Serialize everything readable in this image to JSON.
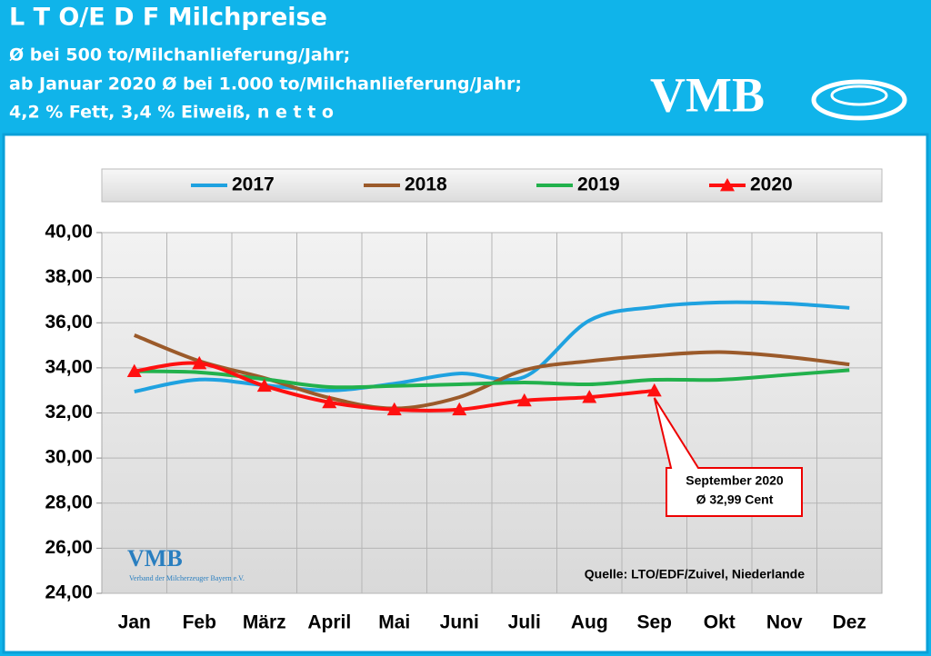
{
  "header": {
    "title": "L T O/E D F Milchpreise",
    "lines": [
      "Ø bei 500 to/Milchanlieferung/Jahr;",
      "ab Januar 2020 Ø bei 1.000 to/Milchanlieferung/Jahr;",
      "4,2 % Fett, 3,4 % Eiweiß, n e t t o"
    ],
    "logo": "VMB"
  },
  "chart_data": {
    "type": "line",
    "categories": [
      "Jan",
      "Feb",
      "März",
      "April",
      "Mai",
      "Juni",
      "Juli",
      "Aug",
      "Sep",
      "Okt",
      "Nov",
      "Dez"
    ],
    "series": [
      {
        "name": "2017",
        "color": "#1fa2e0",
        "values": [
          32.95,
          33.48,
          33.23,
          33.0,
          33.3,
          33.75,
          33.6,
          36.1,
          36.7,
          36.9,
          36.86,
          36.66
        ]
      },
      {
        "name": "2018",
        "color": "#9b5a2a",
        "values": [
          35.45,
          34.3,
          33.55,
          32.67,
          32.2,
          32.7,
          33.9,
          34.3,
          34.55,
          34.7,
          34.5,
          34.15
        ]
      },
      {
        "name": "2019",
        "color": "#22b14c",
        "values": [
          33.85,
          33.8,
          33.5,
          33.15,
          33.2,
          33.27,
          33.35,
          33.27,
          33.47,
          33.47,
          33.68,
          33.9
        ]
      },
      {
        "name": "2020",
        "color": "#ff1010",
        "marker": "triangle",
        "values": [
          33.85,
          34.2,
          33.2,
          32.47,
          32.15,
          32.15,
          32.55,
          32.7,
          32.99,
          null,
          null,
          null
        ]
      }
    ],
    "ylim": [
      24,
      40
    ],
    "yticks": [
      {
        "value": 24,
        "label": "24,00"
      },
      {
        "value": 26,
        "label": "26,00"
      },
      {
        "value": 28,
        "label": "28,00"
      },
      {
        "value": 30,
        "label": "30,00"
      },
      {
        "value": 32,
        "label": "32,00"
      },
      {
        "value": 34,
        "label": "34,00"
      },
      {
        "value": 36,
        "label": "36,00"
      },
      {
        "value": 38,
        "label": "38,00"
      },
      {
        "value": 40,
        "label": "40,00"
      }
    ],
    "grid": true,
    "legend": "top",
    "annotation": [
      "September 2020",
      "Ø 32,99 Cent"
    ],
    "source": "Quelle: LTO/EDF/Zuivel, Niederlande",
    "watermark": [
      "VMB",
      "Verband der Milcherzeuger Bayern e.V."
    ]
  }
}
